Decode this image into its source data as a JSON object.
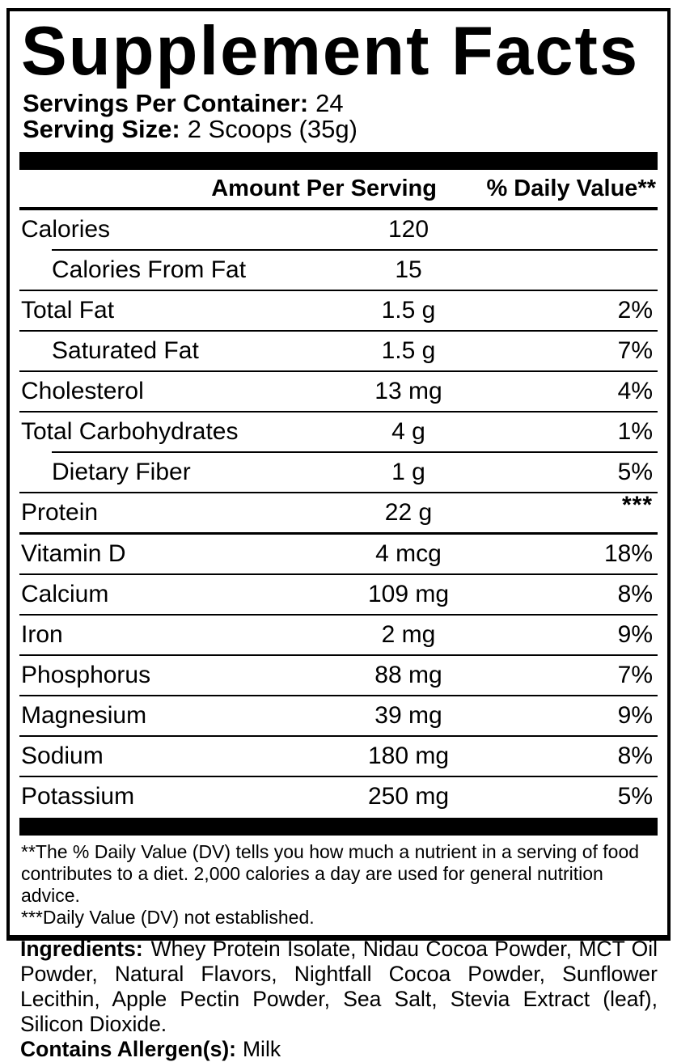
{
  "label": {
    "title": "Supplement Facts",
    "servings": [
      {
        "label": "Servings Per Container:",
        "value": "24"
      },
      {
        "label": "Serving Size:",
        "value": "2 Scoops (35g)"
      }
    ],
    "columns": {
      "amount": "Amount Per Serving",
      "daily_value": "% Daily Value**"
    },
    "rows": [
      {
        "name": "Calories",
        "amount": "120",
        "dv": "",
        "indent": false,
        "rule_after": "indented"
      },
      {
        "name": "Calories From Fat",
        "amount": "15",
        "dv": "",
        "indent": true,
        "rule_after": "full"
      },
      {
        "name": "Total Fat",
        "amount": "1.5 g",
        "dv": "2%",
        "indent": false,
        "rule_after": "full"
      },
      {
        "name": "Saturated Fat",
        "amount": "1.5 g",
        "dv": "7%",
        "indent": true,
        "rule_after": "full"
      },
      {
        "name": "Cholesterol",
        "amount": "13 mg",
        "dv": "4%",
        "indent": false,
        "rule_after": "full"
      },
      {
        "name": "Total Carbohydrates",
        "amount": "4 g",
        "dv": "1%",
        "indent": false,
        "rule_after": "indented"
      },
      {
        "name": "Dietary Fiber",
        "amount": "1 g",
        "dv": "5%",
        "indent": true,
        "rule_after": "full"
      },
      {
        "name": "Protein",
        "amount": "22 g",
        "dv": "***",
        "indent": false,
        "rule_after": "thick"
      },
      {
        "name": "Vitamin D",
        "amount": "4 mcg",
        "dv": "18%",
        "indent": false,
        "rule_after": "full"
      },
      {
        "name": "Calcium",
        "amount": "109 mg",
        "dv": "8%",
        "indent": false,
        "rule_after": "full"
      },
      {
        "name": "Iron",
        "amount": "2 mg",
        "dv": "9%",
        "indent": false,
        "rule_after": "full"
      },
      {
        "name": "Phosphorus",
        "amount": "88 mg",
        "dv": "7%",
        "indent": false,
        "rule_after": "full"
      },
      {
        "name": "Magnesium",
        "amount": "39 mg",
        "dv": "9%",
        "indent": false,
        "rule_after": "full"
      },
      {
        "name": "Sodium",
        "amount": "180 mg",
        "dv": "8%",
        "indent": false,
        "rule_after": "full"
      },
      {
        "name": "Potassium",
        "amount": "250 mg",
        "dv": "5%",
        "indent": false,
        "rule_after": "none"
      }
    ],
    "footnotes": [
      "**The % Daily Value (DV) tells you how much a nutrient in a serving of food contributes to a diet. 2,000 calories a day are used for general nutrition advice.",
      "***Daily Value (DV) not established."
    ],
    "colors": {
      "text": "#000000",
      "background": "#ffffff"
    }
  },
  "ingredients": {
    "label": "Ingredients:",
    "text": "Whey Protein Isolate, Nidau Cocoa Powder, MCT Oil Powder, Natural Flavors, Nightfall Cocoa Powder, Sunflower Lecithin, Apple Pectin Powder, Sea Salt, Stevia Extract (leaf), Silicon Dioxide.",
    "allergen_label": "Contains Allergen(s):",
    "allergen_value": "Milk"
  }
}
